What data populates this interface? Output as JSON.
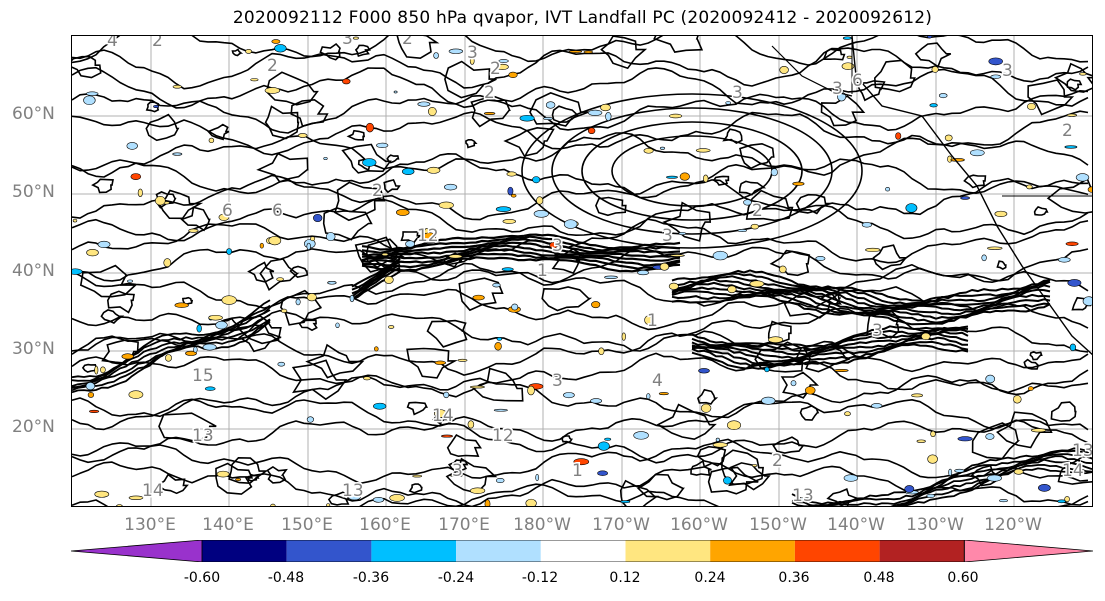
{
  "title": "2020092112 F000 850 hPa qvapor, IVT Landfall PC (2020092412 - 2020092612)",
  "map": {
    "lat_labels": [
      "60°N",
      "50°N",
      "40°N",
      "30°N",
      "20°N"
    ],
    "lon_labels": [
      "130°E",
      "140°E",
      "150°E",
      "160°E",
      "170°E",
      "180°W",
      "170°W",
      "160°W",
      "150°W",
      "140°W",
      "130°W",
      "120°W"
    ],
    "contour_labels": [
      "4",
      "2",
      "2",
      "3",
      "2",
      "3",
      "2",
      "2",
      "3",
      "3",
      "1",
      "6",
      "2",
      "3",
      "3",
      "2",
      "6",
      "12",
      "1",
      "15",
      "14",
      "13",
      "13",
      "14",
      "3",
      "12",
      "1",
      "13",
      "3",
      "4",
      "14",
      "2",
      "6",
      "3",
      "2",
      "3",
      "13"
    ],
    "grid": true,
    "coastline": true
  },
  "colorbar": {
    "colors": [
      "#9932cc",
      "#000080",
      "#3355cc",
      "#00bfff",
      "#b0e0ff",
      "#ffffff",
      "#ffe680",
      "#ffa500",
      "#ff4500",
      "#b22222",
      "#ff88aa"
    ],
    "tick_labels": [
      "-0.60",
      "-0.48",
      "-0.36",
      "-0.24",
      "-0.12",
      "0.12",
      "0.24",
      "0.36",
      "0.48",
      "0.60"
    ],
    "extend": "both"
  }
}
